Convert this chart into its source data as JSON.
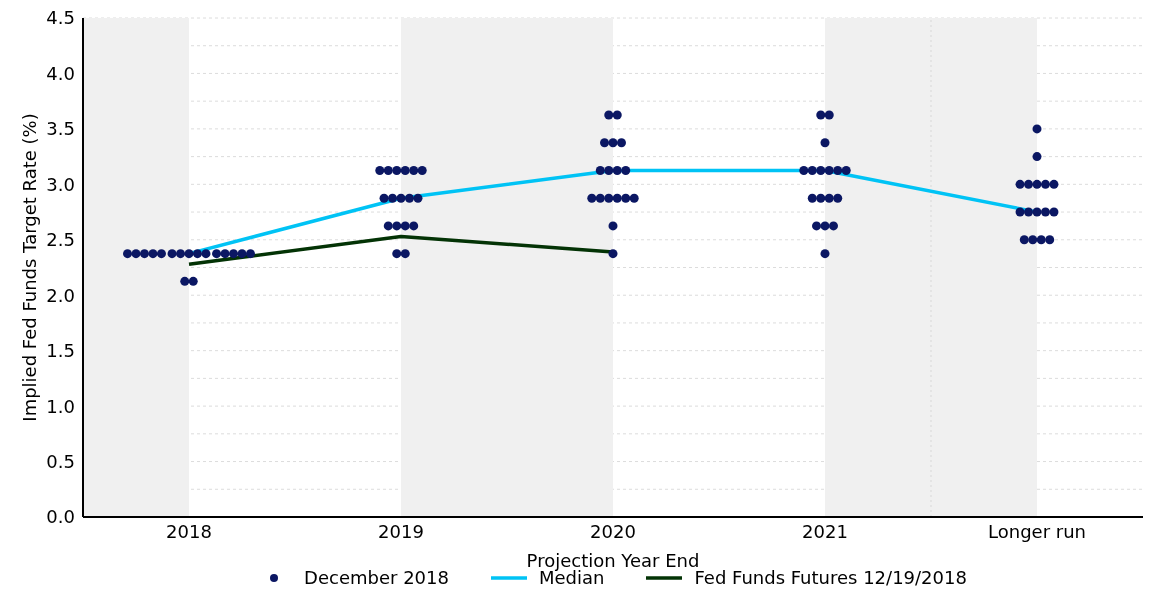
{
  "chart_data": {
    "type": "scatter",
    "xlabel": "Projection Year End",
    "ylabel": "Implied Fed Funds Target Rate (%)",
    "xlim": [
      2017.5,
      2022.5
    ],
    "xticks": [
      2018,
      2019,
      2020,
      2021,
      {
        "value": 2022,
        "label": "Longer run"
      }
    ],
    "ylim": [
      0,
      4.5
    ],
    "yticks": [
      {
        "value": 0,
        "label": "0.0"
      },
      {
        "value": 0.25,
        "label": null
      },
      {
        "value": 0.5,
        "label": "0.5"
      },
      {
        "value": 0.75,
        "label": null
      },
      {
        "value": 1,
        "label": "1.0"
      },
      {
        "value": 1.25,
        "label": null
      },
      {
        "value": 1.5,
        "label": "1.5"
      },
      {
        "value": 1.75,
        "label": null
      },
      {
        "value": 2,
        "label": "2.0"
      },
      {
        "value": 2.25,
        "label": null
      },
      {
        "value": 2.5,
        "label": "2.5"
      },
      {
        "value": 2.75,
        "label": null
      },
      {
        "value": 3,
        "label": "3.0"
      },
      {
        "value": 3.25,
        "label": null
      },
      {
        "value": 3.5,
        "label": "3.5"
      },
      {
        "value": 3.75,
        "label": null
      },
      {
        "value": 4,
        "label": "4.0"
      },
      {
        "value": 4.25,
        "label": null
      },
      {
        "value": 4.5,
        "label": "4.5"
      }
    ],
    "grid": "y",
    "legend": "bottom",
    "marker": "circle",
    "bands": [
      {
        "axis": "x",
        "from": 2017.5,
        "to": 2018,
        "color": "#f0f0f0"
      },
      {
        "axis": "x",
        "from": 2019,
        "to": 2020,
        "color": "#f0f0f0"
      },
      {
        "axis": "x",
        "from": 2021,
        "to": 2022,
        "color": "#f0f0f0"
      }
    ],
    "ref_lines": [
      {
        "axis": "x",
        "value": 2021.5,
        "color": "#d8d8d8",
        "line_style": "dotted"
      }
    ],
    "series": [
      {
        "name": "December 2018",
        "color": "#0b1763",
        "x": [
          2017.71,
          2017.75,
          2017.79,
          2017.83,
          2017.87,
          2017.92,
          2017.96,
          2018,
          2018.04,
          2018.08,
          2018.13,
          2018.17,
          2018.21,
          2018.25,
          2018.29,
          2017.98,
          2018.02,
          2018.9,
          2018.94,
          2018.98,
          2019.02,
          2019.06,
          2019.1,
          2018.92,
          2018.96,
          2019,
          2019.04,
          2019.08,
          2018.94,
          2018.98,
          2019.02,
          2019.06,
          2018.98,
          2019.02,
          2019.98,
          2020.02,
          2019.96,
          2020,
          2020.04,
          2019.94,
          2019.98,
          2020.02,
          2020.06,
          2019.9,
          2019.94,
          2019.98,
          2020.02,
          2020.06,
          2020.1,
          2020,
          2020,
          2020.98,
          2021.02,
          2021,
          2020.9,
          2020.94,
          2020.98,
          2021.02,
          2021.06,
          2021.1,
          2020.94,
          2020.98,
          2021.02,
          2021.06,
          2020.96,
          2021,
          2021.04,
          2021,
          2022,
          2022,
          2021.92,
          2021.96,
          2022,
          2022.04,
          2022.08,
          2021.92,
          2021.96,
          2022,
          2022.04,
          2022.08,
          2021.94,
          2021.98,
          2022.02,
          2022.06
        ],
        "values": [
          2.375,
          2.375,
          2.375,
          2.375,
          2.375,
          2.375,
          2.375,
          2.375,
          2.375,
          2.375,
          2.375,
          2.375,
          2.375,
          2.375,
          2.375,
          2.125,
          2.125,
          3.125,
          3.125,
          3.125,
          3.125,
          3.125,
          3.125,
          2.875,
          2.875,
          2.875,
          2.875,
          2.875,
          2.625,
          2.625,
          2.625,
          2.625,
          2.375,
          2.375,
          3.625,
          3.625,
          3.375,
          3.375,
          3.375,
          3.125,
          3.125,
          3.125,
          3.125,
          2.875,
          2.875,
          2.875,
          2.875,
          2.875,
          2.875,
          2.625,
          2.375,
          3.625,
          3.625,
          3.375,
          3.125,
          3.125,
          3.125,
          3.125,
          3.125,
          3.125,
          2.875,
          2.875,
          2.875,
          2.875,
          2.625,
          2.625,
          2.625,
          2.375,
          3.5,
          3.25,
          3.0,
          3.0,
          3.0,
          3.0,
          3.0,
          2.75,
          2.75,
          2.75,
          2.75,
          2.75,
          2.5,
          2.5,
          2.5,
          2.5
        ]
      },
      {
        "name": "Median",
        "type": "line",
        "color": "#00c3f5",
        "marker": "none",
        "line_style": "solid",
        "x": [
          2018,
          2019,
          2020,
          2021,
          2022
        ],
        "values": [
          2.375,
          2.875,
          3.125,
          3.125,
          2.75
        ]
      },
      {
        "name": "Fed Funds Futures 12/19/2018",
        "type": "line",
        "color": "#033305",
        "marker": "none",
        "line_style": "solid",
        "x": [
          2018,
          2019,
          2020
        ],
        "values": [
          2.28,
          2.53,
          2.39
        ]
      }
    ]
  }
}
